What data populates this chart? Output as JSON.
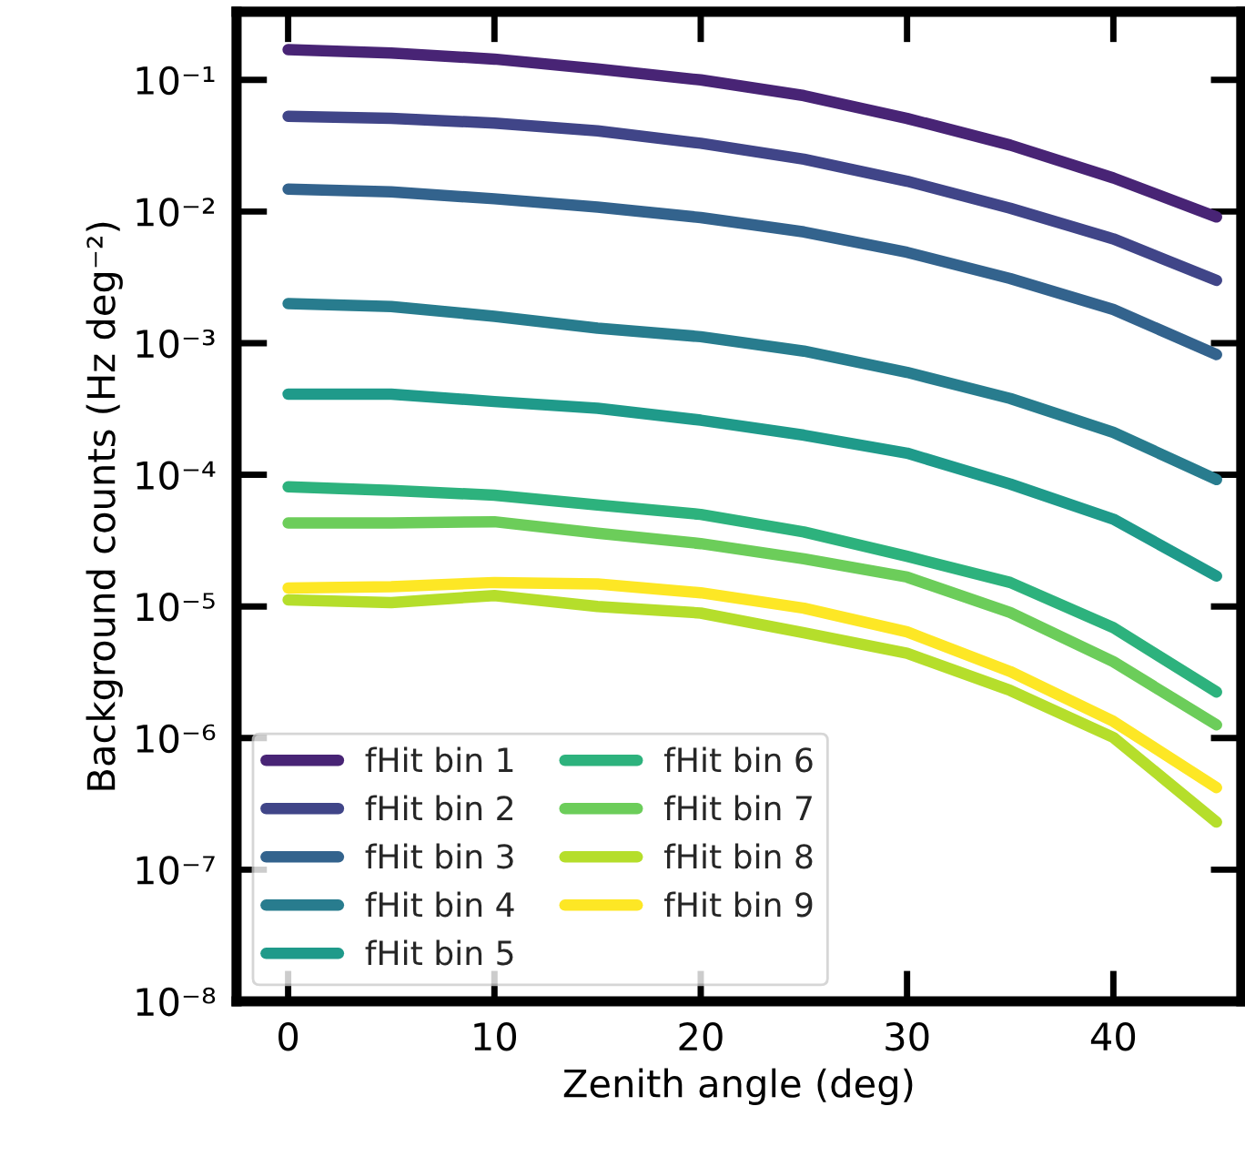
{
  "chart_data": {
    "type": "line",
    "xlabel": "Zenith angle (deg)",
    "ylabel": "Background counts (Hz deg⁻²)",
    "x": [
      0,
      5,
      10,
      15,
      20,
      25,
      30,
      35,
      40,
      45
    ],
    "series": [
      {
        "name": "fHit bin 1",
        "color": "#482475",
        "values": [
          0.17,
          0.16,
          0.144,
          0.121,
          0.1,
          0.076,
          0.051,
          0.032,
          0.018,
          0.0091
        ]
      },
      {
        "name": "fHit bin 2",
        "color": "#404588",
        "values": [
          0.053,
          0.051,
          0.047,
          0.041,
          0.033,
          0.025,
          0.017,
          0.0106,
          0.0062,
          0.003
        ]
      },
      {
        "name": "fHit bin 3",
        "color": "#33638d",
        "values": [
          0.0148,
          0.0141,
          0.0125,
          0.0108,
          0.009,
          0.007,
          0.0049,
          0.0031,
          0.0018,
          0.00082
        ]
      },
      {
        "name": "fHit bin 4",
        "color": "#287c8e",
        "values": [
          0.002,
          0.0019,
          0.0016,
          0.0013,
          0.00112,
          0.00087,
          0.0006,
          0.00038,
          0.00021,
          9.2e-05
        ]
      },
      {
        "name": "fHit bin 5",
        "color": "#1f9a8a",
        "values": [
          0.00041,
          0.00041,
          0.00036,
          0.00032,
          0.00026,
          0.0002,
          0.000146,
          8.5e-05,
          4.6e-05,
          1.7e-05
        ]
      },
      {
        "name": "fHit bin 6",
        "color": "#2db27d",
        "values": [
          8.1e-05,
          7.6e-05,
          7e-05,
          5.9e-05,
          5e-05,
          3.68e-05,
          2.4e-05,
          1.52e-05,
          6.9e-06,
          2.24e-06
        ]
      },
      {
        "name": "fHit bin 7",
        "color": "#6ccd5a",
        "values": [
          4.3e-05,
          4.3e-05,
          4.4e-05,
          3.6e-05,
          3e-05,
          2.3e-05,
          1.67e-05,
          9e-06,
          3.8e-06,
          1.26e-06
        ]
      },
      {
        "name": "fHit bin 8",
        "color": "#b5de2b",
        "values": [
          1.12e-05,
          1.07e-05,
          1.21e-05,
          1e-05,
          8.9e-06,
          6.3e-06,
          4.4e-06,
          2.3e-06,
          1.01e-06,
          2.3e-07
        ]
      },
      {
        "name": "fHit bin 9",
        "color": "#fde725",
        "values": [
          1.38e-05,
          1.41e-05,
          1.52e-05,
          1.48e-05,
          1.27e-05,
          9.7e-06,
          6.4e-06,
          3.2e-06,
          1.34e-06,
          4.2e-07
        ]
      }
    ],
    "log": "y",
    "xlim": [
      -2.5,
      46.2
    ],
    "ylim": [
      1e-08,
      0.33
    ],
    "xticks": [
      0,
      10,
      20,
      30,
      40
    ],
    "yticks": [
      {
        "value": 1e-08,
        "label": "10⁻⁸"
      },
      {
        "value": 1e-07,
        "label": "10⁻⁷"
      },
      {
        "value": 1e-06,
        "label": "10⁻⁶"
      },
      {
        "value": 1e-05,
        "label": "10⁻⁵"
      },
      {
        "value": 0.0001,
        "label": "10⁻⁴"
      },
      {
        "value": 0.001,
        "label": "10⁻³"
      },
      {
        "value": 0.01,
        "label": "10⁻²"
      },
      {
        "value": 0.1,
        "label": "10⁻¹"
      }
    ],
    "legend": "bottom left",
    "grid": false,
    "line_style": "solid",
    "marker": "none"
  }
}
